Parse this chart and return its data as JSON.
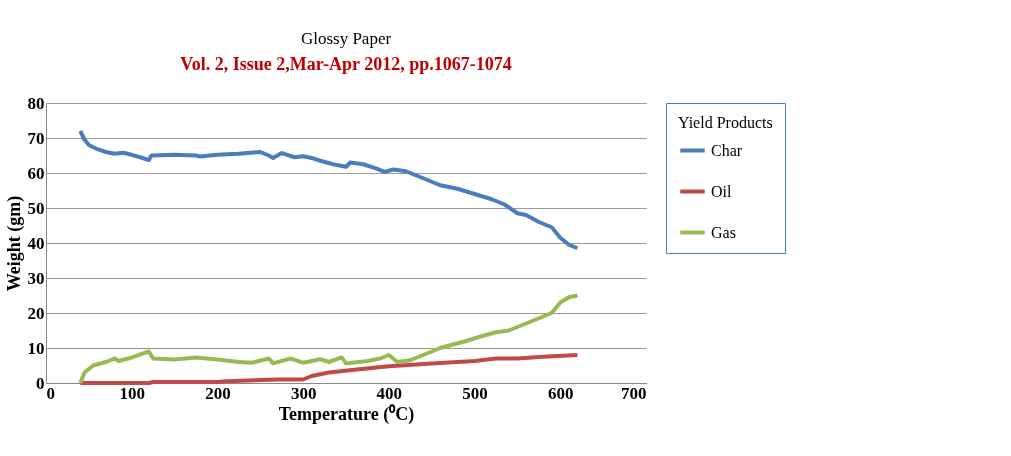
{
  "chart_data": {
    "type": "line",
    "title": "Glossy Paper",
    "xlabel": "Temperature (⁰C)",
    "ylabel": "Weight (gm)",
    "legend_title": "Yield Products",
    "annotations": [
      "Vol. 2, Issue 2,Mar-Apr 2012, pp.1067-1074"
    ],
    "xlim": [
      0,
      700
    ],
    "xticks": [
      0,
      100,
      200,
      300,
      400,
      500,
      600,
      700
    ],
    "ylim": [
      0,
      80
    ],
    "yticks": [
      0,
      10,
      20,
      30,
      40,
      50,
      60,
      70,
      80
    ],
    "grid": "y",
    "legend": "right",
    "marker": "none",
    "line_style": "solid",
    "series": [
      {
        "name": "Char",
        "color": "#4a7ebb",
        "x": [
          40,
          45,
          50,
          60,
          70,
          80,
          90,
          100,
          110,
          120,
          123,
          150,
          175,
          180,
          200,
          225,
          250,
          260,
          265,
          275,
          290,
          300,
          310,
          320,
          335,
          350,
          355,
          370,
          385,
          395,
          405,
          420,
          440,
          460,
          480,
          500,
          520,
          535,
          550,
          560,
          575,
          590,
          600,
          610,
          620
        ],
        "values": [
          72,
          69.5,
          68,
          66.8,
          66,
          65.5,
          65.8,
          65.2,
          64.5,
          63.7,
          65,
          65.2,
          65,
          64.7,
          65.2,
          65.5,
          66,
          65,
          64.3,
          65.7,
          64.5,
          64.8,
          64.3,
          63.5,
          62.5,
          61.8,
          63,
          62.5,
          61.3,
          60.3,
          61,
          60.5,
          58.5,
          56.5,
          55.5,
          54,
          52.5,
          51,
          48.5,
          48,
          46,
          44.5,
          41.5,
          39.5,
          38.5
        ]
      },
      {
        "name": "Oil",
        "color": "#be4b48",
        "x": [
          40,
          120,
          125,
          200,
          210,
          270,
          300,
          310,
          330,
          360,
          400,
          450,
          500,
          525,
          550,
          580,
          620
        ],
        "values": [
          0,
          0,
          0.3,
          0.3,
          0.5,
          1,
          1,
          2,
          3,
          3.8,
          4.8,
          5.6,
          6.3,
          7,
          7,
          7.5,
          8
        ]
      },
      {
        "name": "Gas",
        "color": "#98b954",
        "x": [
          40,
          45,
          55,
          70,
          80,
          85,
          100,
          120,
          125,
          150,
          175,
          200,
          225,
          240,
          260,
          265,
          285,
          300,
          320,
          330,
          345,
          350,
          375,
          390,
          400,
          410,
          425,
          440,
          460,
          475,
          490,
          510,
          525,
          540,
          560,
          580,
          590,
          600,
          610,
          620
        ],
        "values": [
          0,
          3,
          5,
          6,
          7,
          6.3,
          7.3,
          9,
          7,
          6.7,
          7.3,
          6.7,
          6,
          5.8,
          7,
          5.6,
          7,
          5.8,
          6.8,
          6,
          7.3,
          5.6,
          6.3,
          7,
          8,
          6,
          6.5,
          8,
          10,
          11,
          12,
          13.5,
          14.5,
          15,
          17,
          19,
          20,
          23,
          24.5,
          25
        ]
      }
    ]
  }
}
